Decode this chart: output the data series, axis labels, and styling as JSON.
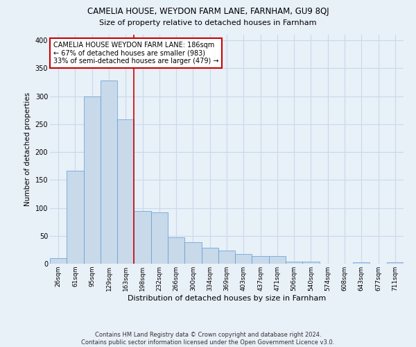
{
  "title": "CAMELIA HOUSE, WEYDON FARM LANE, FARNHAM, GU9 8QJ",
  "subtitle": "Size of property relative to detached houses in Farnham",
  "xlabel": "Distribution of detached houses by size in Farnham",
  "ylabel": "Number of detached properties",
  "footer_line1": "Contains HM Land Registry data © Crown copyright and database right 2024.",
  "footer_line2": "Contains public sector information licensed under the Open Government Licence v3.0.",
  "bar_labels": [
    "26sqm",
    "61sqm",
    "95sqm",
    "129sqm",
    "163sqm",
    "198sqm",
    "232sqm",
    "266sqm",
    "300sqm",
    "334sqm",
    "369sqm",
    "403sqm",
    "437sqm",
    "471sqm",
    "506sqm",
    "540sqm",
    "574sqm",
    "608sqm",
    "643sqm",
    "677sqm",
    "711sqm"
  ],
  "bar_values": [
    10,
    167,
    300,
    328,
    258,
    95,
    92,
    47,
    38,
    28,
    23,
    17,
    14,
    14,
    4,
    4,
    0,
    0,
    2,
    0,
    2
  ],
  "bar_color": "#c8d9ea",
  "bar_edge_color": "#5b9bd5",
  "grid_color": "#c8d9ea",
  "background_color": "#e8f0f8",
  "vline_color": "#cc0000",
  "annotation_text": "CAMELIA HOUSE WEYDON FARM LANE: 186sqm\n← 67% of detached houses are smaller (983)\n33% of semi-detached houses are larger (479) →",
  "annotation_box_color": "#ffffff",
  "annotation_box_edge": "#cc0000",
  "ylim": [
    0,
    410
  ],
  "yticks": [
    0,
    50,
    100,
    150,
    200,
    250,
    300,
    350,
    400
  ]
}
